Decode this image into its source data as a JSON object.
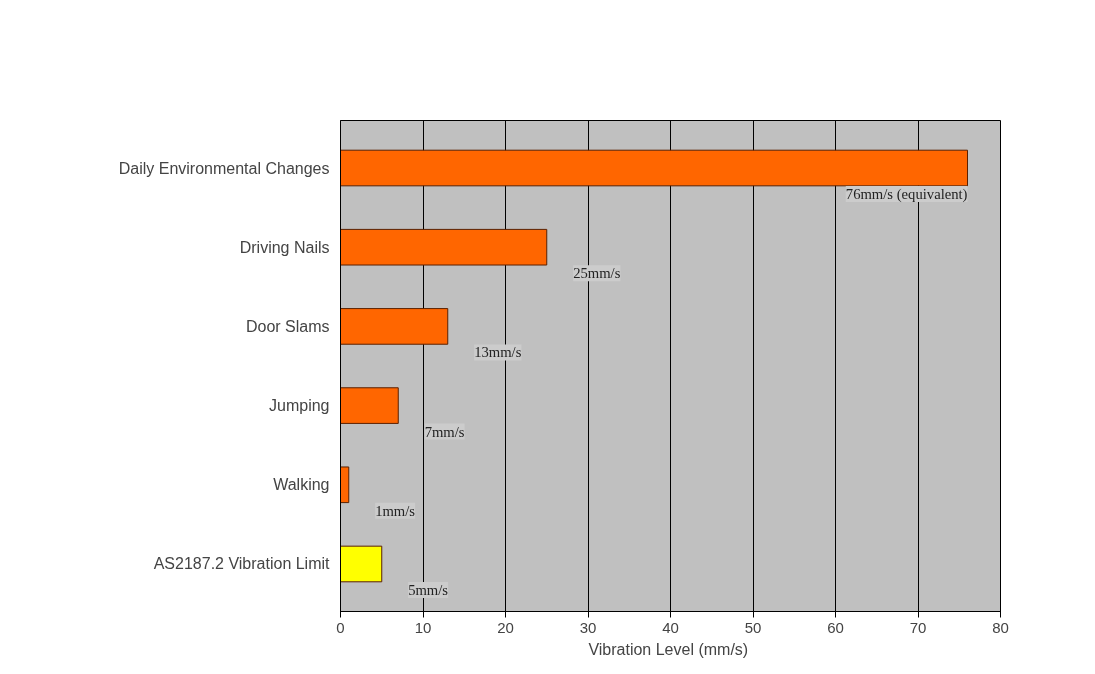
{
  "chart_data": {
    "type": "bar",
    "orientation": "horizontal",
    "xlabel": "Vibration Level  (mm/s)",
    "categories": [
      "Daily Environmental Changes",
      "Driving Nails",
      "Door Slams",
      "Jumping",
      "Walking",
      "AS2187.2 Vibration Limit"
    ],
    "values": [
      76,
      25,
      13,
      7,
      1,
      5
    ],
    "colors": [
      "#ff6600",
      "#ff6600",
      "#ff6600",
      "#ff6600",
      "#ff6600",
      "#ffff00"
    ],
    "value_labels": [
      "76mm/s (equivalent)",
      "25mm/s",
      "13mm/s",
      "7mm/s",
      "1mm/s",
      "5mm/s"
    ],
    "xlim": [
      0,
      80
    ],
    "xticks": [
      0,
      10,
      20,
      30,
      40,
      50,
      60,
      70,
      80
    ],
    "grid": "x"
  }
}
